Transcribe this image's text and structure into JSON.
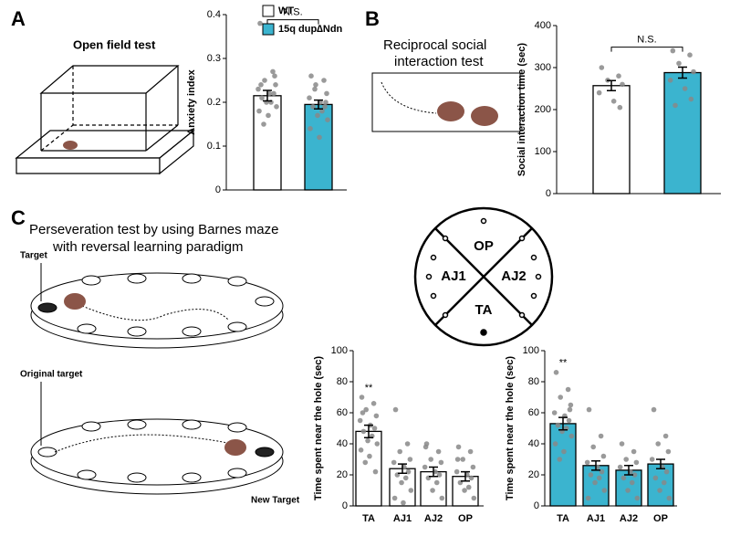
{
  "figure": {
    "panels": [
      "A",
      "B",
      "C"
    ],
    "open_field": "Open field test",
    "social_title": [
      "Reciprocal social",
      "interaction test"
    ],
    "barnes_title": [
      "Perseveration test by using Barnes maze",
      "with reversal learning paradigm"
    ],
    "target": "Target",
    "original_target": "Original target",
    "new_target": "New Target",
    "zones": [
      "OP",
      "AJ1",
      "AJ2",
      "TA"
    ]
  },
  "chart_data": [
    {
      "type": "bar",
      "ylabel": "Anxiety index",
      "annotation": "N.S.",
      "ylim": [
        0,
        0.4
      ],
      "yticks": [
        0,
        0.1,
        0.2,
        0.3,
        0.4
      ],
      "series": [
        {
          "name": "WT",
          "color": "#ffffff",
          "values": [
            0.215
          ],
          "errors": [
            0.012
          ],
          "points": [
            [
              0.38,
              0.27,
              0.25,
              0.24,
              0.23,
              0.22,
              0.22,
              0.21,
              0.2,
              0.2,
              0.19,
              0.18,
              0.17,
              0.15,
              0.26,
              0.24
            ]
          ]
        },
        {
          "name": "15q dup∆Ndn",
          "color": "#3bb4cf",
          "values": [
            0.195
          ],
          "errors": [
            0.01
          ],
          "points": [
            [
              0.26,
              0.25,
              0.24,
              0.22,
              0.21,
              0.2,
              0.19,
              0.19,
              0.18,
              0.17,
              0.16,
              0.14,
              0.12,
              0.23,
              0.2
            ]
          ]
        }
      ]
    },
    {
      "type": "bar",
      "ylabel": "Social interaction time (sec)",
      "annotation": "N.S.",
      "ylim": [
        0,
        400
      ],
      "yticks": [
        0,
        100,
        200,
        300,
        400
      ],
      "series": [
        {
          "color": "#ffffff",
          "values": [
            257
          ],
          "errors": [
            12
          ],
          "points": [
            [
              300,
              280,
              270,
              260,
              240,
              220,
              205
            ]
          ]
        },
        {
          "color": "#3bb4cf",
          "values": [
            288
          ],
          "errors": [
            13
          ],
          "points": [
            [
              340,
              330,
              310,
              290,
              270,
              250,
              225,
              210
            ]
          ]
        }
      ]
    },
    {
      "type": "bar",
      "ylabel": "Time spent near the hole (sec)",
      "annotation": "**",
      "categories": [
        "TA",
        "AJ1",
        "AJ2",
        "OP"
      ],
      "ylim": [
        0,
        100
      ],
      "yticks": [
        0,
        20,
        40,
        60,
        80,
        100
      ],
      "series": [
        {
          "color": "#ffffff",
          "values": [
            48,
            24,
            22,
            19
          ],
          "errors": [
            4,
            3,
            3,
            3
          ],
          "points": [
            [
              70,
              66,
              62,
              58,
              55,
              52,
              50,
              48,
              45,
              42,
              40,
              36,
              32,
              28,
              22,
              60
            ],
            [
              62,
              40,
              35,
              30,
              28,
              25,
              22,
              20,
              18,
              15,
              10,
              5,
              2
            ],
            [
              40,
              35,
              30,
              28,
              25,
              22,
              20,
              18,
              15,
              10,
              5,
              38
            ],
            [
              38,
              35,
              30,
              25,
              22,
              20,
              18,
              15,
              12,
              10,
              5,
              30
            ]
          ]
        }
      ]
    },
    {
      "type": "bar",
      "ylabel": "Time spent near the hole (sec)",
      "annotation": "**",
      "categories": [
        "TA",
        "AJ1",
        "AJ2",
        "OP"
      ],
      "ylim": [
        0,
        100
      ],
      "yticks": [
        0,
        20,
        40,
        60,
        80,
        100
      ],
      "series": [
        {
          "color": "#3bb4cf",
          "values": [
            53,
            26,
            23,
            27
          ],
          "errors": [
            4,
            3,
            3,
            3
          ],
          "points": [
            [
              86,
              75,
              70,
              65,
              60,
              58,
              55,
              52,
              50,
              48,
              45,
              40,
              35,
              30,
              62
            ],
            [
              62,
              45,
              38,
              32,
              28,
              25,
              22,
              20,
              18,
              15,
              10,
              5
            ],
            [
              40,
              35,
              30,
              28,
              25,
              22,
              20,
              18,
              15,
              10,
              5
            ],
            [
              62,
              45,
              40,
              35,
              30,
              25,
              22,
              18,
              15,
              10,
              5
            ]
          ]
        }
      ]
    }
  ]
}
